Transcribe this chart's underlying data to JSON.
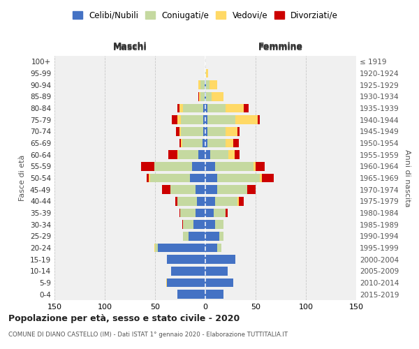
{
  "age_groups": [
    "0-4",
    "5-9",
    "10-14",
    "15-19",
    "20-24",
    "25-29",
    "30-34",
    "35-39",
    "40-44",
    "45-49",
    "50-54",
    "55-59",
    "60-64",
    "65-69",
    "70-74",
    "75-79",
    "80-84",
    "85-89",
    "90-94",
    "95-99",
    "100+"
  ],
  "birth_years": [
    "2015-2019",
    "2010-2014",
    "2005-2009",
    "2000-2004",
    "1995-1999",
    "1990-1994",
    "1985-1989",
    "1980-1984",
    "1975-1979",
    "1970-1974",
    "1965-1969",
    "1960-1964",
    "1955-1959",
    "1950-1954",
    "1945-1949",
    "1940-1944",
    "1935-1939",
    "1930-1934",
    "1925-1929",
    "1920-1924",
    "≤ 1919"
  ],
  "males": {
    "celibi": [
      28,
      38,
      34,
      38,
      47,
      17,
      12,
      10,
      8,
      10,
      15,
      13,
      7,
      3,
      2,
      2,
      2,
      1,
      1,
      0,
      0
    ],
    "coniugati": [
      0,
      0,
      0,
      0,
      3,
      5,
      10,
      15,
      20,
      25,
      40,
      38,
      20,
      20,
      22,
      22,
      20,
      4,
      4,
      0,
      0
    ],
    "vedovi": [
      0,
      1,
      0,
      0,
      1,
      0,
      0,
      0,
      0,
      0,
      1,
      0,
      1,
      1,
      2,
      4,
      4,
      1,
      2,
      0,
      0
    ],
    "divorziati": [
      0,
      0,
      0,
      0,
      0,
      0,
      1,
      1,
      2,
      8,
      2,
      13,
      9,
      2,
      3,
      5,
      2,
      1,
      0,
      0,
      0
    ]
  },
  "females": {
    "nubili": [
      18,
      28,
      22,
      30,
      12,
      14,
      10,
      8,
      10,
      12,
      12,
      10,
      5,
      2,
      2,
      2,
      2,
      1,
      1,
      0,
      0
    ],
    "coniugate": [
      0,
      0,
      0,
      0,
      4,
      4,
      8,
      12,
      22,
      30,
      42,
      38,
      18,
      18,
      18,
      28,
      18,
      5,
      3,
      1,
      0
    ],
    "vedove": [
      0,
      0,
      0,
      0,
      0,
      0,
      0,
      0,
      1,
      0,
      2,
      2,
      6,
      8,
      12,
      22,
      18,
      12,
      8,
      2,
      0
    ],
    "divorziate": [
      0,
      0,
      0,
      0,
      0,
      0,
      0,
      2,
      5,
      8,
      12,
      9,
      5,
      5,
      2,
      2,
      5,
      0,
      0,
      0,
      0
    ]
  },
  "colors": {
    "celibi": "#4472c4",
    "coniugati": "#c5d9a0",
    "vedovi": "#ffd966",
    "divorziati": "#cc0000"
  },
  "legend_labels": [
    "Celibi/Nubili",
    "Coniugati/e",
    "Vedovi/e",
    "Divorziati/e"
  ],
  "xlim": 150,
  "title": "Popolazione per età, sesso e stato civile - 2020",
  "subtitle": "COMUNE DI DIANO CASTELLO (IM) - Dati ISTAT 1° gennaio 2020 - Elaborazione TUTTITALIA.IT",
  "ylabel_left": "Fasce di età",
  "ylabel_right": "Anni di nascita",
  "xlabel_left": "Maschi",
  "xlabel_right": "Femmine",
  "background_color": "#ffffff",
  "grid_color": "#c8c8c8"
}
